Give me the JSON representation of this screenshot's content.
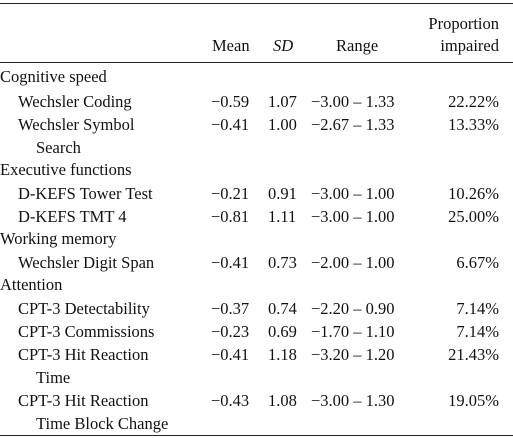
{
  "header": {
    "mean": "Mean",
    "sd": "SD",
    "range": "Range",
    "proportion_line1": "Proportion",
    "proportion_line2": "impaired"
  },
  "sections": [
    {
      "title": "Cognitive speed",
      "rows": [
        {
          "label": "Wechsler Coding",
          "label_cont": "",
          "mean": "−0.59",
          "sd": "1.07",
          "range": "−3.00 – 1.33",
          "proportion": "22.22%"
        },
        {
          "label": "Wechsler Symbol",
          "label_cont": "Search",
          "mean": "−0.41",
          "sd": "1.00",
          "range": "−2.67 – 1.33",
          "proportion": "13.33%"
        }
      ]
    },
    {
      "title": "Executive functions",
      "rows": [
        {
          "label": "D-KEFS Tower Test",
          "label_cont": "",
          "mean": "−0.21",
          "sd": "0.91",
          "range": "−3.00 – 1.00",
          "proportion": "10.26%"
        },
        {
          "label": "D-KEFS TMT 4",
          "label_cont": "",
          "mean": "−0.81",
          "sd": "1.11",
          "range": "−3.00 – 1.00",
          "proportion": "25.00%"
        }
      ]
    },
    {
      "title": "Working memory",
      "rows": [
        {
          "label": "Wechsler Digit Span",
          "label_cont": "",
          "mean": "−0.41",
          "sd": "0.73",
          "range": "−2.00 – 1.00",
          "proportion": "6.67%"
        }
      ]
    },
    {
      "title": "Attention",
      "rows": [
        {
          "label": "CPT-3 Detectability",
          "label_cont": "",
          "mean": "−0.37",
          "sd": "0.74",
          "range": "−2.20 – 0.90",
          "proportion": "7.14%"
        },
        {
          "label": "CPT-3 Commissions",
          "label_cont": "",
          "mean": "−0.23",
          "sd": "0.69",
          "range": "−1.70 – 1.10",
          "proportion": "7.14%"
        },
        {
          "label": "CPT-3 Hit Reaction",
          "label_cont": "Time",
          "mean": "−0.41",
          "sd": "1.18",
          "range": "−3.20 – 1.20",
          "proportion": "21.43%"
        },
        {
          "label": "CPT-3 Hit Reaction",
          "label_cont": "Time Block Change",
          "mean": "−0.43",
          "sd": "1.08",
          "range": "−3.00 – 1.30",
          "proportion": "19.05%"
        }
      ]
    }
  ]
}
